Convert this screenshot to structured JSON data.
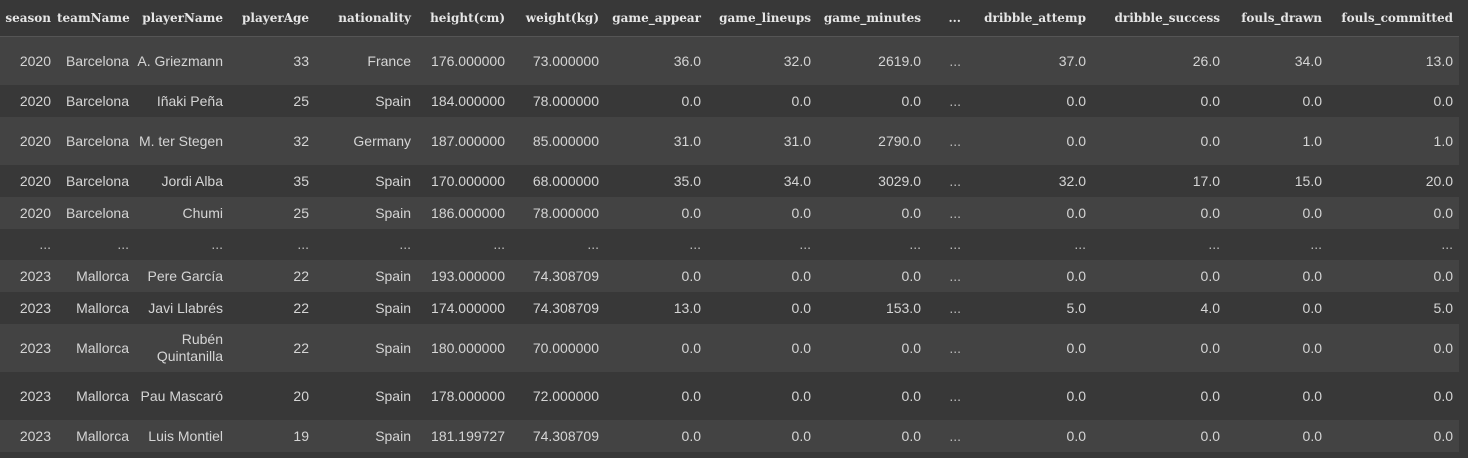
{
  "table": {
    "columns": [
      "season",
      "teamName",
      "playerName",
      "playerAge",
      "nationality",
      "height(cm)",
      "weight(kg)",
      "game_appear",
      "game_lineups",
      "game_minutes",
      "...",
      "dribble_attemp",
      "dribble_success",
      "fouls_drawn",
      "fouls_committed"
    ],
    "rows": [
      {
        "season": "2020",
        "teamName": "Barcelona",
        "playerName": "A. Griezmann",
        "playerAge": "33",
        "nationality": "France",
        "height": "176.000000",
        "weight": "73.000000",
        "game_appear": "36.0",
        "game_lineups": "32.0",
        "game_minutes": "2619.0",
        "ellipsis": "...",
        "dribble_attemp": "37.0",
        "dribble_success": "26.0",
        "fouls_drawn": "34.0",
        "fouls_committed": "13.0"
      },
      {
        "season": "2020",
        "teamName": "Barcelona",
        "playerName": "Iñaki Peña",
        "playerAge": "25",
        "nationality": "Spain",
        "height": "184.000000",
        "weight": "78.000000",
        "game_appear": "0.0",
        "game_lineups": "0.0",
        "game_minutes": "0.0",
        "ellipsis": "...",
        "dribble_attemp": "0.0",
        "dribble_success": "0.0",
        "fouls_drawn": "0.0",
        "fouls_committed": "0.0"
      },
      {
        "season": "2020",
        "teamName": "Barcelona",
        "playerName": "M. ter Stegen",
        "playerAge": "32",
        "nationality": "Germany",
        "height": "187.000000",
        "weight": "85.000000",
        "game_appear": "31.0",
        "game_lineups": "31.0",
        "game_minutes": "2790.0",
        "ellipsis": "...",
        "dribble_attemp": "0.0",
        "dribble_success": "0.0",
        "fouls_drawn": "1.0",
        "fouls_committed": "1.0"
      },
      {
        "season": "2020",
        "teamName": "Barcelona",
        "playerName": "Jordi Alba",
        "playerAge": "35",
        "nationality": "Spain",
        "height": "170.000000",
        "weight": "68.000000",
        "game_appear": "35.0",
        "game_lineups": "34.0",
        "game_minutes": "3029.0",
        "ellipsis": "...",
        "dribble_attemp": "32.0",
        "dribble_success": "17.0",
        "fouls_drawn": "15.0",
        "fouls_committed": "20.0"
      },
      {
        "season": "2020",
        "teamName": "Barcelona",
        "playerName": "Chumi",
        "playerAge": "25",
        "nationality": "Spain",
        "height": "186.000000",
        "weight": "78.000000",
        "game_appear": "0.0",
        "game_lineups": "0.0",
        "game_minutes": "0.0",
        "ellipsis": "...",
        "dribble_attemp": "0.0",
        "dribble_success": "0.0",
        "fouls_drawn": "0.0",
        "fouls_committed": "0.0"
      },
      {
        "season": "...",
        "teamName": "...",
        "playerName": "...",
        "playerAge": "...",
        "nationality": "...",
        "height": "...",
        "weight": "...",
        "game_appear": "...",
        "game_lineups": "...",
        "game_minutes": "...",
        "ellipsis": "...",
        "dribble_attemp": "...",
        "dribble_success": "...",
        "fouls_drawn": "...",
        "fouls_committed": "..."
      },
      {
        "season": "2023",
        "teamName": "Mallorca",
        "playerName": "Pere García",
        "playerAge": "22",
        "nationality": "Spain",
        "height": "193.000000",
        "weight": "74.308709",
        "game_appear": "0.0",
        "game_lineups": "0.0",
        "game_minutes": "0.0",
        "ellipsis": "...",
        "dribble_attemp": "0.0",
        "dribble_success": "0.0",
        "fouls_drawn": "0.0",
        "fouls_committed": "0.0"
      },
      {
        "season": "2023",
        "teamName": "Mallorca",
        "playerName": "Javi Llabrés",
        "playerAge": "22",
        "nationality": "Spain",
        "height": "174.000000",
        "weight": "74.308709",
        "game_appear": "13.0",
        "game_lineups": "0.0",
        "game_minutes": "153.0",
        "ellipsis": "...",
        "dribble_attemp": "5.0",
        "dribble_success": "4.0",
        "fouls_drawn": "0.0",
        "fouls_committed": "5.0"
      },
      {
        "season": "2023",
        "teamName": "Mallorca",
        "playerName": "Rubén Quintanilla",
        "playerAge": "22",
        "nationality": "Spain",
        "height": "180.000000",
        "weight": "70.000000",
        "game_appear": "0.0",
        "game_lineups": "0.0",
        "game_minutes": "0.0",
        "ellipsis": "...",
        "dribble_attemp": "0.0",
        "dribble_success": "0.0",
        "fouls_drawn": "0.0",
        "fouls_committed": "0.0"
      },
      {
        "season": "2023",
        "teamName": "Mallorca",
        "playerName": "Pau Mascaró",
        "playerAge": "20",
        "nationality": "Spain",
        "height": "178.000000",
        "weight": "72.000000",
        "game_appear": "0.0",
        "game_lineups": "0.0",
        "game_minutes": "0.0",
        "ellipsis": "...",
        "dribble_attemp": "0.0",
        "dribble_success": "0.0",
        "fouls_drawn": "0.0",
        "fouls_committed": "0.0"
      },
      {
        "season": "2023",
        "teamName": "Mallorca",
        "playerName": "Luis Montiel",
        "playerAge": "19",
        "nationality": "Spain",
        "height": "181.199727",
        "weight": "74.308709",
        "game_appear": "0.0",
        "game_lineups": "0.0",
        "game_minutes": "0.0",
        "ellipsis": "...",
        "dribble_attemp": "0.0",
        "dribble_success": "0.0",
        "fouls_drawn": "0.0",
        "fouls_committed": "0.0"
      }
    ]
  }
}
